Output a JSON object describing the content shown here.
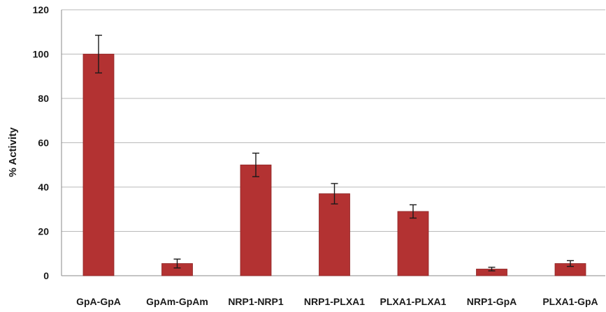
{
  "chart_data": {
    "type": "bar",
    "title": "",
    "xlabel": "",
    "ylabel": "% Activity",
    "ylim": [
      0,
      120
    ],
    "yticks": [
      0,
      20,
      40,
      60,
      80,
      100,
      120
    ],
    "grid": true,
    "categories": [
      "GpA-GpA",
      "GpAm-GpAm",
      "NRP1-NRP1",
      "NRP1-PLXA1",
      "PLXA1-PLXA1",
      "NRP1-GpA",
      "PLXA1-GpA"
    ],
    "series": [
      {
        "values": [
          100,
          5.5,
          50,
          37,
          29,
          3,
          5.5
        ],
        "error": [
          8.5,
          2,
          5.3,
          4.6,
          3,
          0.8,
          1.3
        ]
      }
    ],
    "colors": {
      "bar": "#b33232",
      "bar_edge": "#8e2424"
    }
  }
}
